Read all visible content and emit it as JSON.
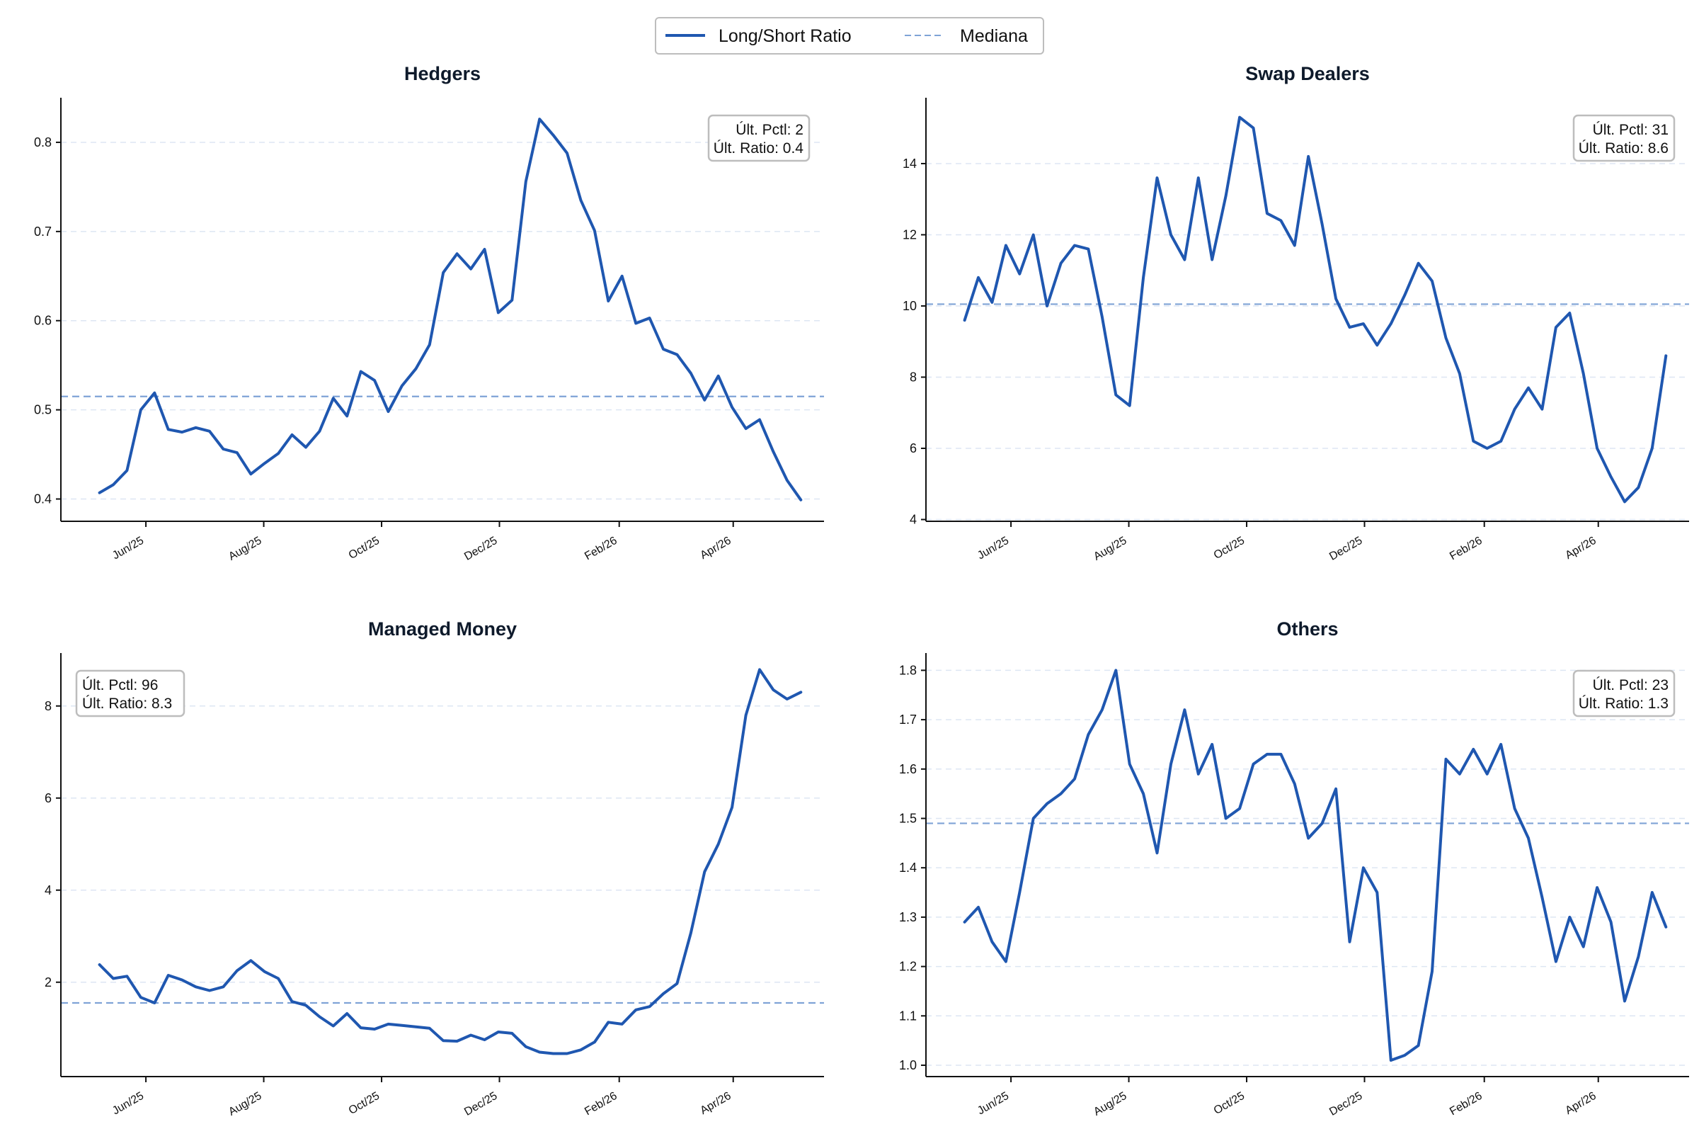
{
  "legend": {
    "entries": [
      {
        "label": "Long/Short Ratio",
        "style": "solid",
        "color": "#1f57b0"
      },
      {
        "label": "Mediana",
        "style": "dashed",
        "color": "#7fa3d6"
      }
    ],
    "placement": "top-center"
  },
  "colors": {
    "line": "#1f57b0",
    "median": "#7fa3d6",
    "grid": "#dde6f3",
    "axis": "#111111",
    "box_border": "#bdbdbd"
  },
  "chart_data": [
    {
      "type": "line",
      "title": "Hedgers",
      "xlabel": "",
      "ylabel": "",
      "x_range": [
        "2025-05",
        "2026-05"
      ],
      "x_ticks": [
        "Jun/25",
        "Aug/25",
        "Oct/25",
        "Dec/25",
        "Feb/26",
        "Apr/26"
      ],
      "ylim": [
        0.375,
        0.85
      ],
      "y_ticks": [
        "0.4",
        "0.5",
        "0.6",
        "0.7",
        "0.8"
      ],
      "median": 0.515,
      "grid": "horizontal-dashed",
      "stats": {
        "pctl": "Últ. Pctl: 2",
        "ratio": "Últ. Ratio: 0.4",
        "placement": "top-right"
      },
      "series": [
        {
          "values": [
            0.407,
            0.416,
            0.432,
            0.5,
            0.519,
            0.478,
            0.475,
            0.48,
            0.476,
            0.456,
            0.452,
            0.428,
            0.44,
            0.451,
            0.472,
            0.458,
            0.476,
            0.513,
            0.493,
            0.543,
            0.533,
            0.498,
            0.527,
            0.546,
            0.573,
            0.654,
            0.675,
            0.658,
            0.68,
            0.609,
            0.623,
            0.756,
            0.826,
            0.808,
            0.788,
            0.735,
            0.701,
            0.622,
            0.65,
            0.597,
            0.603,
            0.568,
            0.562,
            0.541,
            0.511,
            0.538,
            0.503,
            0.479,
            0.489,
            0.453,
            0.421,
            0.399
          ]
        }
      ]
    },
    {
      "type": "line",
      "title": "Swap Dealers",
      "xlabel": "",
      "ylabel": "",
      "x_range": [
        "2025-05",
        "2026-05"
      ],
      "x_ticks": [
        "Jun/25",
        "Aug/25",
        "Oct/25",
        "Dec/25",
        "Feb/26",
        "Apr/26"
      ],
      "ylim": [
        3.95,
        15.85
      ],
      "y_ticks": [
        "4",
        "6",
        "8",
        "10",
        "12",
        "14"
      ],
      "median": 10.05,
      "grid": "horizontal-dashed",
      "stats": {
        "pctl": "Últ. Pctl: 31",
        "ratio": "Últ. Ratio: 8.6",
        "placement": "top-right"
      },
      "series": [
        {
          "values": [
            9.6,
            10.8,
            10.1,
            11.7,
            10.9,
            12.0,
            10.0,
            11.2,
            11.7,
            11.6,
            9.7,
            7.5,
            7.2,
            10.8,
            13.6,
            12.0,
            11.3,
            13.6,
            11.3,
            13.1,
            15.3,
            15.0,
            12.6,
            12.4,
            11.7,
            14.2,
            12.3,
            10.2,
            9.4,
            9.5,
            8.9,
            9.5,
            10.3,
            11.2,
            10.7,
            9.1,
            8.1,
            6.2,
            6.0,
            6.2,
            7.1,
            7.7,
            7.1,
            9.4,
            9.8,
            8.1,
            6.0,
            5.2,
            4.5,
            4.9,
            6.0,
            8.6
          ]
        }
      ]
    },
    {
      "type": "line",
      "title": "Managed Money",
      "xlabel": "",
      "ylabel": "",
      "x_range": [
        "2025-05",
        "2026-05"
      ],
      "x_ticks": [
        "Jun/25",
        "Aug/25",
        "Oct/25",
        "Dec/25",
        "Feb/26",
        "Apr/26"
      ],
      "ylim": [
        -0.05,
        9.15
      ],
      "y_ticks": [
        "2",
        "4",
        "6",
        "8"
      ],
      "median": 1.55,
      "grid": "horizontal-dashed",
      "stats": {
        "pctl": "Últ. Pctl: 96",
        "ratio": "Últ. Ratio: 8.3",
        "placement": "top-left"
      },
      "series": [
        {
          "values": [
            2.38,
            2.08,
            2.13,
            1.67,
            1.55,
            2.15,
            2.05,
            1.9,
            1.82,
            1.9,
            2.25,
            2.47,
            2.23,
            2.08,
            1.58,
            1.5,
            1.25,
            1.05,
            1.32,
            1.01,
            0.98,
            1.09,
            1.06,
            1.03,
            1.0,
            0.73,
            0.72,
            0.85,
            0.75,
            0.92,
            0.89,
            0.6,
            0.48,
            0.45,
            0.45,
            0.53,
            0.7,
            1.13,
            1.09,
            1.4,
            1.47,
            1.75,
            1.97,
            3.07,
            4.4,
            5.0,
            5.8,
            7.8,
            8.79,
            8.35,
            8.15,
            8.3
          ]
        }
      ]
    },
    {
      "type": "line",
      "title": "Others",
      "xlabel": "",
      "ylabel": "",
      "x_range": [
        "2025-05",
        "2026-05"
      ],
      "x_ticks": [
        "Jun/25",
        "Aug/25",
        "Oct/25",
        "Dec/25",
        "Feb/26",
        "Apr/26"
      ],
      "ylim": [
        0.977,
        1.835
      ],
      "y_ticks": [
        "1.0",
        "1.1",
        "1.2",
        "1.3",
        "1.4",
        "1.5",
        "1.6",
        "1.7",
        "1.8"
      ],
      "median": 1.49,
      "grid": "horizontal-dashed",
      "stats": {
        "pctl": "Últ. Pctl: 23",
        "ratio": "Últ. Ratio: 1.3",
        "placement": "top-right"
      },
      "series": [
        {
          "values": [
            1.29,
            1.32,
            1.25,
            1.21,
            1.35,
            1.5,
            1.53,
            1.55,
            1.58,
            1.67,
            1.72,
            1.8,
            1.61,
            1.55,
            1.43,
            1.61,
            1.72,
            1.59,
            1.65,
            1.5,
            1.52,
            1.61,
            1.63,
            1.63,
            1.57,
            1.46,
            1.49,
            1.56,
            1.25,
            1.4,
            1.35,
            1.01,
            1.02,
            1.04,
            1.19,
            1.62,
            1.59,
            1.64,
            1.59,
            1.65,
            1.52,
            1.46,
            1.34,
            1.21,
            1.3,
            1.24,
            1.36,
            1.29,
            1.13,
            1.22,
            1.35,
            1.28
          ]
        }
      ]
    }
  ]
}
